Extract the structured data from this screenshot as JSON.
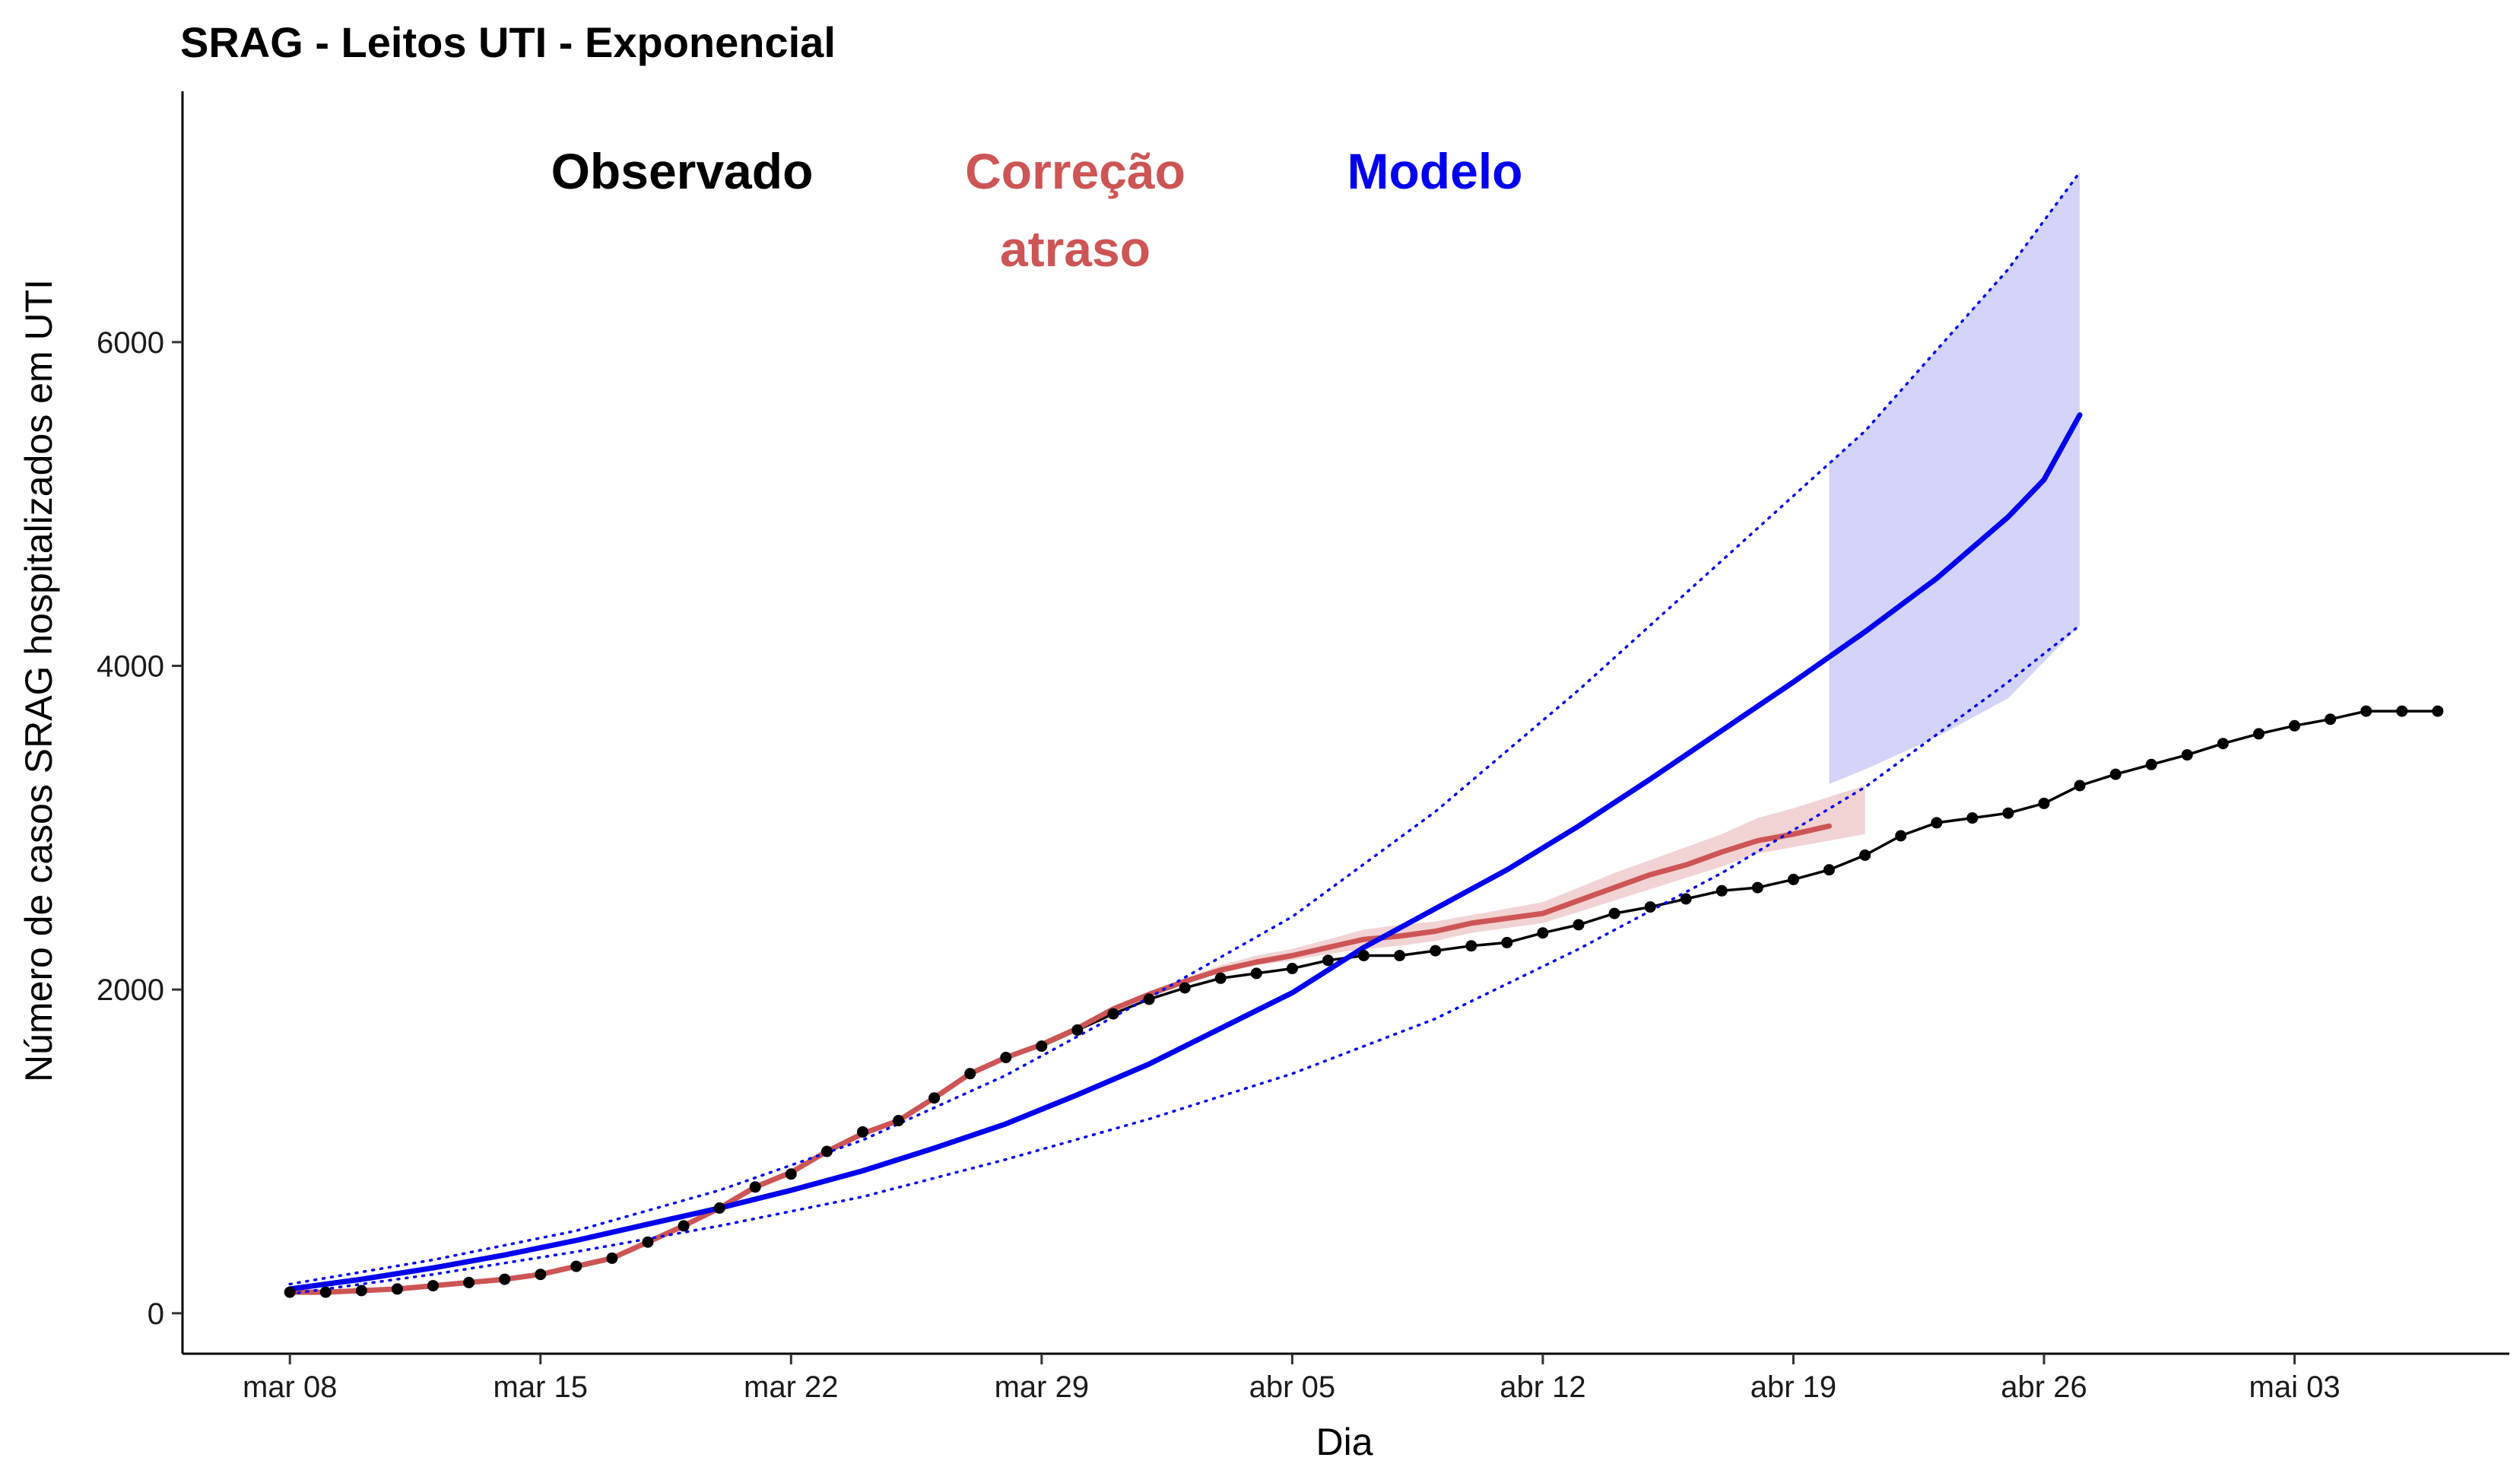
{
  "chart_data": {
    "type": "line",
    "title": "SRAG - Leitos UTI - Exponencial",
    "xlabel": "Dia",
    "ylabel": "Número de casos SRAG hospitalizados em UTI",
    "x_ticks": [
      "mar 08",
      "mar 15",
      "mar 22",
      "mar 29",
      "abr 05",
      "abr 12",
      "abr 19",
      "abr 26",
      "mai 03"
    ],
    "y_ticks": [
      "0",
      "2000",
      "4000",
      "6000"
    ],
    "xlim": [
      "2020-03-05",
      "2020-05-09"
    ],
    "ylim": [
      -250,
      7550
    ],
    "grid": false,
    "legend": "annotations at top",
    "annotations": [
      {
        "text": "Observado",
        "color": "#000000"
      },
      {
        "text": "Correção",
        "text2": "atraso",
        "color": "#CD5555"
      },
      {
        "text": "Modelo",
        "color": "#0000EE"
      }
    ],
    "series": [
      {
        "name": "Observado",
        "color": "#000000",
        "style": "line+points",
        "x": [
          "2020-03-08",
          "2020-03-09",
          "2020-03-10",
          "2020-03-11",
          "2020-03-12",
          "2020-03-13",
          "2020-03-14",
          "2020-03-15",
          "2020-03-16",
          "2020-03-17",
          "2020-03-18",
          "2020-03-19",
          "2020-03-20",
          "2020-03-21",
          "2020-03-22",
          "2020-03-23",
          "2020-03-24",
          "2020-03-25",
          "2020-03-26",
          "2020-03-27",
          "2020-03-28",
          "2020-03-29",
          "2020-03-30",
          "2020-03-31",
          "2020-04-01",
          "2020-04-02",
          "2020-04-03",
          "2020-04-04",
          "2020-04-05",
          "2020-04-06",
          "2020-04-07",
          "2020-04-08",
          "2020-04-09",
          "2020-04-10",
          "2020-04-11",
          "2020-04-12",
          "2020-04-13",
          "2020-04-14",
          "2020-04-15",
          "2020-04-16",
          "2020-04-17",
          "2020-04-18",
          "2020-04-19",
          "2020-04-20",
          "2020-04-21",
          "2020-04-22",
          "2020-04-23",
          "2020-04-24",
          "2020-04-25",
          "2020-04-26",
          "2020-04-27",
          "2020-04-28",
          "2020-04-29",
          "2020-04-30",
          "2020-05-01",
          "2020-05-02",
          "2020-05-03",
          "2020-05-04",
          "2020-05-05",
          "2020-05-06",
          "2020-05-07"
        ],
        "y": [
          130,
          130,
          140,
          150,
          170,
          190,
          210,
          240,
          290,
          340,
          440,
          540,
          650,
          780,
          860,
          1000,
          1120,
          1190,
          1330,
          1480,
          1580,
          1650,
          1750,
          1850,
          1940,
          2010,
          2070,
          2100,
          2130,
          2180,
          2210,
          2210,
          2240,
          2270,
          2290,
          2350,
          2400,
          2470,
          2510,
          2560,
          2610,
          2630,
          2680,
          2740,
          2830,
          2950,
          3030,
          3060,
          3090,
          3150,
          3260,
          3330,
          3390,
          3450,
          3520,
          3580,
          3630,
          3670,
          3720,
          3720,
          3720
        ]
      },
      {
        "name": "Correção atraso",
        "color": "#CD5555",
        "style": "line",
        "x": [
          "2020-03-08",
          "2020-03-09",
          "2020-03-10",
          "2020-03-11",
          "2020-03-12",
          "2020-03-13",
          "2020-03-14",
          "2020-03-15",
          "2020-03-16",
          "2020-03-17",
          "2020-03-18",
          "2020-03-19",
          "2020-03-20",
          "2020-03-21",
          "2020-03-22",
          "2020-03-23",
          "2020-03-24",
          "2020-03-25",
          "2020-03-26",
          "2020-03-27",
          "2020-03-28",
          "2020-03-29",
          "2020-03-30",
          "2020-03-31",
          "2020-04-01",
          "2020-04-02",
          "2020-04-03",
          "2020-04-04",
          "2020-04-05",
          "2020-04-06",
          "2020-04-07",
          "2020-04-08",
          "2020-04-09",
          "2020-04-10",
          "2020-04-11",
          "2020-04-12",
          "2020-04-13",
          "2020-04-14",
          "2020-04-15",
          "2020-04-16",
          "2020-04-17",
          "2020-04-18",
          "2020-04-19",
          "2020-04-20"
        ],
        "y": [
          130,
          130,
          140,
          150,
          170,
          190,
          210,
          240,
          290,
          340,
          440,
          540,
          650,
          780,
          870,
          1000,
          1110,
          1190,
          1330,
          1480,
          1580,
          1660,
          1760,
          1880,
          1970,
          2050,
          2120,
          2170,
          2210,
          2260,
          2310,
          2330,
          2360,
          2410,
          2440,
          2470,
          2550,
          2630,
          2710,
          2770,
          2850,
          2920,
          2960,
          3010
        ]
      },
      {
        "name": "Correção atraso intervalo",
        "color": "#F2D3D3",
        "style": "band",
        "x": [
          "2020-04-01",
          "2020-04-02",
          "2020-04-03",
          "2020-04-04",
          "2020-04-05",
          "2020-04-06",
          "2020-04-07",
          "2020-04-08",
          "2020-04-09",
          "2020-04-10",
          "2020-04-11",
          "2020-04-12",
          "2020-04-13",
          "2020-04-14",
          "2020-04-15",
          "2020-04-16",
          "2020-04-17",
          "2020-04-18",
          "2020-04-19",
          "2020-04-20",
          "2020-04-21"
        ],
        "lower": [
          1960,
          2040,
          2100,
          2150,
          2180,
          2220,
          2250,
          2270,
          2300,
          2350,
          2380,
          2410,
          2480,
          2550,
          2620,
          2690,
          2760,
          2840,
          2880,
          2920,
          2960
        ],
        "upper": [
          1990,
          2070,
          2150,
          2210,
          2250,
          2310,
          2370,
          2400,
          2420,
          2460,
          2500,
          2540,
          2630,
          2720,
          2800,
          2880,
          2960,
          3060,
          3120,
          3190,
          3260
        ]
      },
      {
        "name": "Modelo",
        "color": "#0000EE",
        "style": "line",
        "x": [
          "2020-03-08",
          "2020-03-10",
          "2020-03-12",
          "2020-03-14",
          "2020-03-16",
          "2020-03-18",
          "2020-03-20",
          "2020-03-22",
          "2020-03-24",
          "2020-03-26",
          "2020-03-28",
          "2020-03-30",
          "2020-04-01",
          "2020-04-03",
          "2020-04-05",
          "2020-04-07",
          "2020-04-09",
          "2020-04-11",
          "2020-04-13",
          "2020-04-15",
          "2020-04-17",
          "2020-04-19",
          "2020-04-21",
          "2020-04-23",
          "2020-04-25",
          "2020-04-26",
          "2020-04-27"
        ],
        "y": [
          150,
          210,
          280,
          360,
          450,
          550,
          650,
          760,
          880,
          1020,
          1170,
          1350,
          1540,
          1760,
          1980,
          2260,
          2500,
          2740,
          3010,
          3300,
          3600,
          3900,
          4210,
          4540,
          4920,
          5150,
          5550
        ]
      },
      {
        "name": "Modelo limite superior",
        "color": "#0000EE",
        "style": "dotted",
        "x": [
          "2020-03-08",
          "2020-03-12",
          "2020-03-16",
          "2020-03-20",
          "2020-03-24",
          "2020-03-28",
          "2020-04-01",
          "2020-04-05",
          "2020-04-09",
          "2020-04-13",
          "2020-04-17",
          "2020-04-21",
          "2020-04-25",
          "2020-04-27"
        ],
        "y": [
          180,
          330,
          510,
          760,
          1070,
          1470,
          1950,
          2450,
          3100,
          3850,
          4650,
          5450,
          6450,
          7050
        ]
      },
      {
        "name": "Modelo limite inferior",
        "color": "#0000EE",
        "style": "dotted",
        "x": [
          "2020-03-08",
          "2020-03-12",
          "2020-03-16",
          "2020-03-20",
          "2020-03-24",
          "2020-03-28",
          "2020-04-01",
          "2020-04-05",
          "2020-04-09",
          "2020-04-13",
          "2020-04-17",
          "2020-04-21",
          "2020-04-25",
          "2020-04-27"
        ],
        "y": [
          120,
          240,
          380,
          540,
          720,
          950,
          1200,
          1480,
          1820,
          2250,
          2720,
          3250,
          3900,
          4250
        ]
      },
      {
        "name": "Modelo intervalo",
        "color": "#D4D4FA",
        "style": "band",
        "x": [
          "2020-04-20",
          "2020-04-21",
          "2020-04-23",
          "2020-04-25",
          "2020-04-27"
        ],
        "lower": [
          3270,
          3360,
          3560,
          3800,
          4250
        ],
        "upper": [
          5250,
          5450,
          5950,
          6450,
          7050
        ]
      }
    ]
  }
}
